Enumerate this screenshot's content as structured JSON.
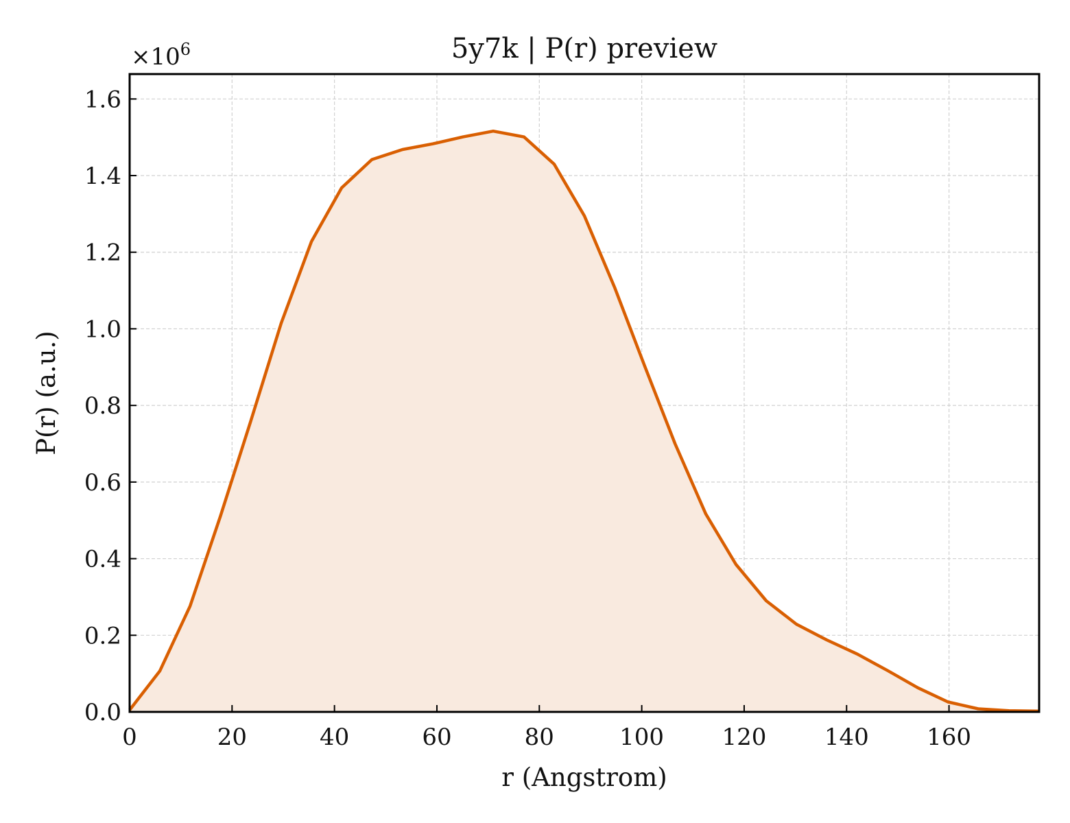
{
  "chart_data": {
    "type": "area",
    "title": "5y7k | P(r) preview",
    "xlabel": "r (Angstrom)",
    "ylabel": "P(r) (a.u.)",
    "y_multiplier_base": "×10",
    "y_multiplier_exp": "6",
    "xlim": [
      0,
      177.6
    ],
    "ylim": [
      0,
      1.665
    ],
    "x_ticks": [
      "0",
      "20",
      "40",
      "60",
      "80",
      "100",
      "120",
      "140",
      "160"
    ],
    "y_ticks": [
      "0.0",
      "0.2",
      "0.4",
      "0.6",
      "0.8",
      "1.0",
      "1.2",
      "1.4",
      "1.6"
    ],
    "grid": true,
    "line_color": "#d95f02",
    "fill_color": "#f9eadf",
    "x": [
      0,
      5.9,
      11.8,
      17.7,
      23.6,
      29.6,
      35.5,
      41.4,
      47.3,
      53.3,
      59.2,
      65.1,
      71.0,
      77.0,
      82.9,
      88.8,
      94.7,
      100.6,
      106.5,
      112.5,
      118.4,
      124.3,
      130.2,
      136.1,
      142.1,
      148.0,
      153.9,
      159.8,
      165.7,
      171.7,
      177.6
    ],
    "y": [
      0.005,
      0.107,
      0.276,
      0.51,
      0.757,
      1.015,
      1.228,
      1.368,
      1.442,
      1.468,
      1.483,
      1.501,
      1.516,
      1.501,
      1.43,
      1.295,
      1.108,
      0.902,
      0.7,
      0.517,
      0.385,
      0.29,
      0.229,
      0.188,
      0.151,
      0.108,
      0.063,
      0.026,
      0.008,
      0.003,
      0.002
    ]
  }
}
